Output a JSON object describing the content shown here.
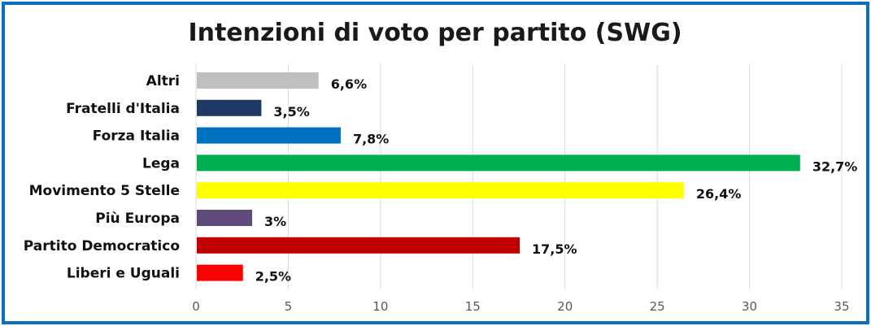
{
  "chart_data": {
    "type": "bar",
    "orientation": "horizontal",
    "title": "Intenzioni di voto per partito (SWG)",
    "xlabel": "",
    "ylabel": "",
    "xlim": [
      0,
      35
    ],
    "ticks": [
      0,
      5,
      10,
      15,
      20,
      25,
      30,
      35
    ],
    "grid": true,
    "legend": "none",
    "categories": [
      "Altri",
      "Fratelli d'Italia",
      "Forza Italia",
      "Lega",
      "Movimento 5 Stelle",
      "Più Europa",
      "Partito Democratico",
      "Liberi e Uguali"
    ],
    "values": [
      6.6,
      3.5,
      7.8,
      32.7,
      26.4,
      3,
      17.5,
      2.5
    ],
    "labels": [
      "6,6%",
      "3,5%",
      "7,8%",
      "32,7%",
      "26,4%",
      "3%",
      "17,5%",
      "2,5%"
    ],
    "colors": [
      "#bfbfbf",
      "#1f3864",
      "#0070c0",
      "#00b050",
      "#ffff00",
      "#604a7b",
      "#c00000",
      "#ff0000"
    ]
  },
  "frame_color": "#0a6fc0"
}
